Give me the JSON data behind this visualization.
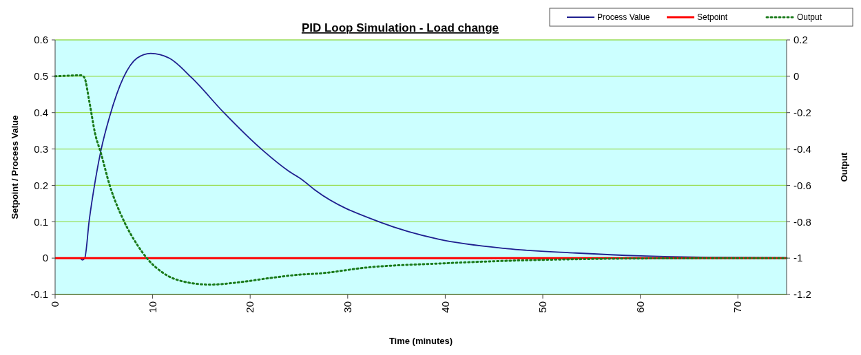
{
  "chart_data": {
    "type": "line",
    "title": "PID Loop Simulation - Load change",
    "xlabel": "Time (minutes)",
    "ylabel": "Setpoint / Process Value",
    "y2label": "Output",
    "xlim": [
      0,
      75
    ],
    "xticks": [
      0,
      10,
      20,
      30,
      40,
      50,
      60,
      70
    ],
    "ylim": [
      -0.1,
      0.6
    ],
    "yticks": [
      -0.1,
      0,
      0.1,
      0.2,
      0.3,
      0.4,
      0.5,
      0.6
    ],
    "y2lim": [
      -1.2,
      0.2
    ],
    "y2ticks": [
      -1.2,
      -1,
      -0.8,
      -0.6,
      -0.4,
      -0.2,
      0,
      0.2
    ],
    "grid": "y",
    "legend": "top right",
    "marker": "none",
    "series": [
      {
        "name": "Process Value",
        "color": "#1f1f8f",
        "line_style": "solid",
        "x": [
          0,
          2.5,
          2.8,
          3.04,
          3.5,
          4.1,
          4.7,
          5.6,
          7.0,
          8.4,
          9.8,
          11.7,
          14.0,
          17.3,
          21.3,
          23.9,
          25.3,
          26.7,
          33.5,
          39.3,
          46.3,
          53.4,
          60,
          67,
          75
        ],
        "values": [
          0,
          0,
          -0.005,
          0,
          0.104,
          0.21,
          0.296,
          0.39,
          0.496,
          0.55,
          0.563,
          0.55,
          0.496,
          0.4,
          0.296,
          0.24,
          0.216,
          0.186,
          0.097,
          0.052,
          0.026,
          0.014,
          0.006,
          0.002,
          0.001
        ]
      },
      {
        "name": "Setpoint",
        "color": "#ff0000",
        "line_style": "solid",
        "x": [
          0,
          75
        ],
        "values": [
          0,
          0
        ]
      },
      {
        "name": "Output",
        "color": "#1a7a1a",
        "line_style": "dotted",
        "axis": "y2",
        "x": [
          0,
          2.7,
          3.0,
          3.5,
          4.1,
          4.7,
          5.6,
          7.0,
          8.4,
          9.4,
          11.2,
          13.6,
          15.9,
          18.7,
          22.0,
          25.3,
          26.7,
          32.3,
          39.3,
          46.3,
          53.4,
          60,
          75
        ],
        "values": [
          0,
          0.005,
          -0.007,
          -0.136,
          -0.315,
          -0.423,
          -0.6,
          -0.79,
          -0.925,
          -1.0,
          -1.086,
          -1.134,
          -1.146,
          -1.134,
          -1.11,
          -1.09,
          -1.086,
          -1.05,
          -1.03,
          -1.015,
          -1.006,
          -1.002,
          -1.0
        ]
      }
    ]
  }
}
